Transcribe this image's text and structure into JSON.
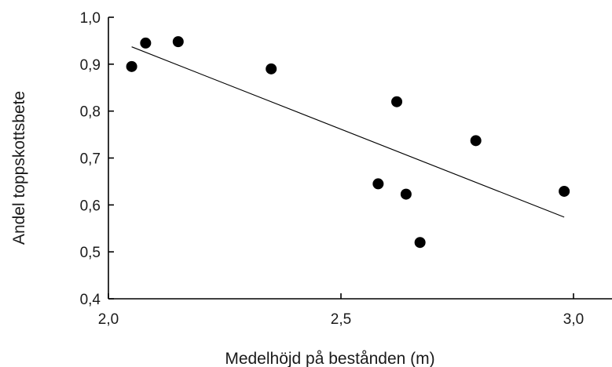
{
  "chart_data": {
    "type": "scatter",
    "title": "",
    "xlabel": "Medelhöjd på bestånden (m)",
    "ylabel": "Andel toppskottsbete",
    "xlim": [
      2.0,
      3.0
    ],
    "ylim": [
      0.4,
      1.0
    ],
    "x_ticks": [
      2.0,
      2.5,
      3.0
    ],
    "x_tick_labels": [
      "2,0",
      "2,5",
      "3,0"
    ],
    "y_ticks": [
      0.4,
      0.5,
      0.6,
      0.7,
      0.8,
      0.9,
      1.0
    ],
    "y_tick_labels": [
      "0,4",
      "0,5",
      "0,6",
      "0,7",
      "0,8",
      "0,9",
      "1,0"
    ],
    "grid": false,
    "legend": "none",
    "series": [
      {
        "points": [
          {
            "x": 2.05,
            "y": 0.895
          },
          {
            "x": 2.08,
            "y": 0.945
          },
          {
            "x": 2.15,
            "y": 0.948
          },
          {
            "x": 2.35,
            "y": 0.89
          },
          {
            "x": 2.58,
            "y": 0.645
          },
          {
            "x": 2.62,
            "y": 0.82
          },
          {
            "x": 2.64,
            "y": 0.623
          },
          {
            "x": 2.67,
            "y": 0.52
          },
          {
            "x": 2.79,
            "y": 0.737
          },
          {
            "x": 2.98,
            "y": 0.629
          }
        ]
      }
    ],
    "trendline": {
      "x": [
        2.05,
        2.98
      ],
      "y": [
        0.937,
        0.574
      ]
    }
  }
}
